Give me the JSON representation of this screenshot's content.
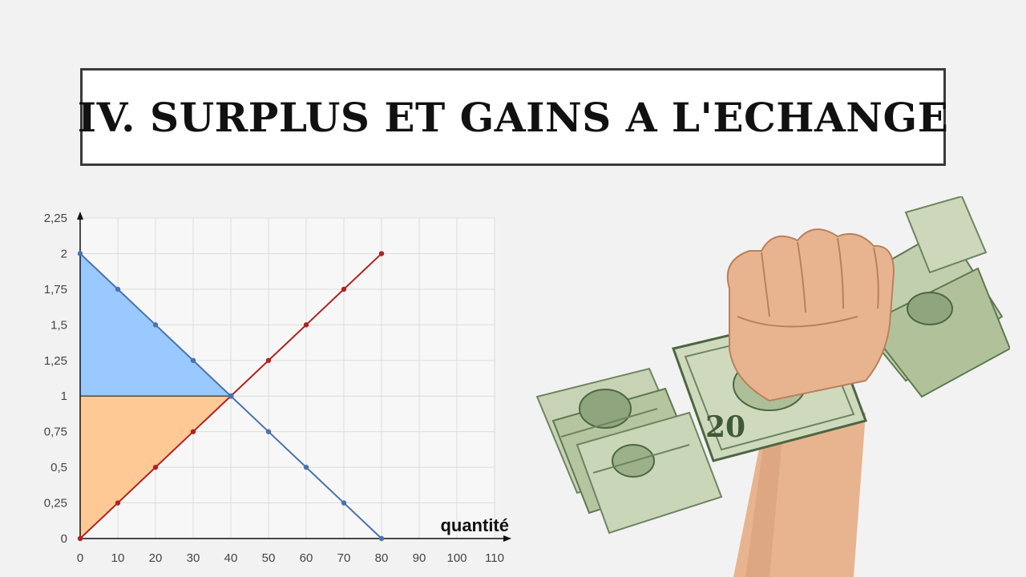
{
  "slide": {
    "title": "IV. SURPLUS ET GAINS A L'ECHANGE"
  },
  "photo": {
    "icon": "fist-holding-cash-icon",
    "note_label": "20",
    "colors": {
      "skin": "#e8b48f",
      "bill": "#b9c9a4",
      "bill_dark": "#5d7a52"
    }
  },
  "chart_data": {
    "type": "line",
    "xlabel": "quantité",
    "ylabel": "",
    "xlim": [
      0,
      110
    ],
    "ylim": [
      0,
      2.25
    ],
    "grid": true,
    "x_ticks": [
      "0",
      "10",
      "20",
      "30",
      "40",
      "50",
      "60",
      "70",
      "80",
      "90",
      "100",
      "110"
    ],
    "y_ticks": [
      "0",
      "0,25",
      "0,5",
      "0,75",
      "1",
      "1,25",
      "1,5",
      "1,75",
      "2",
      "2,25"
    ],
    "series": [
      {
        "color": "#4a72b0",
        "points": [
          [
            0,
            2
          ],
          [
            10,
            1.75
          ],
          [
            20,
            1.5
          ],
          [
            30,
            1.25
          ],
          [
            40,
            1
          ],
          [
            50,
            0.75
          ],
          [
            60,
            0.5
          ],
          [
            70,
            0.25
          ],
          [
            80,
            0
          ]
        ]
      },
      {
        "color": "#b22222",
        "points": [
          [
            0,
            0
          ],
          [
            10,
            0.25
          ],
          [
            20,
            0.5
          ],
          [
            30,
            0.75
          ],
          [
            40,
            1
          ],
          [
            50,
            1.25
          ],
          [
            60,
            1.5
          ],
          [
            70,
            1.75
          ],
          [
            80,
            2
          ]
        ]
      }
    ],
    "areas": [
      {
        "color": "#99c9ff",
        "points": [
          [
            0,
            1
          ],
          [
            0,
            2
          ],
          [
            40,
            1
          ]
        ]
      },
      {
        "color": "#ffc996",
        "points": [
          [
            0,
            0
          ],
          [
            0,
            1
          ],
          [
            40,
            1
          ]
        ]
      }
    ],
    "equilibrium": {
      "x": 40,
      "y": 1
    }
  }
}
